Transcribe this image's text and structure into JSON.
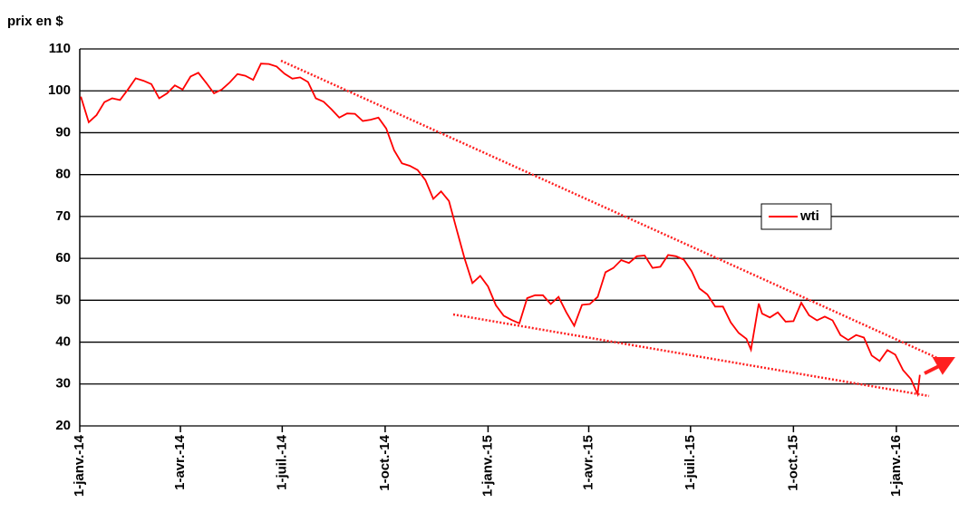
{
  "chart_data": {
    "type": "line",
    "ylabel": "prix en $",
    "x": [
      "2014-01-02",
      "2014-01-09",
      "2014-01-16",
      "2014-01-23",
      "2014-01-30",
      "2014-02-06",
      "2014-02-13",
      "2014-02-20",
      "2014-02-27",
      "2014-03-06",
      "2014-03-13",
      "2014-03-20",
      "2014-03-27",
      "2014-04-03",
      "2014-04-10",
      "2014-04-17",
      "2014-04-24",
      "2014-05-01",
      "2014-05-08",
      "2014-05-15",
      "2014-05-22",
      "2014-05-29",
      "2014-06-05",
      "2014-06-12",
      "2014-06-19",
      "2014-06-26",
      "2014-07-03",
      "2014-07-10",
      "2014-07-17",
      "2014-07-24",
      "2014-07-31",
      "2014-08-07",
      "2014-08-14",
      "2014-08-21",
      "2014-08-28",
      "2014-09-04",
      "2014-09-11",
      "2014-09-18",
      "2014-09-25",
      "2014-10-02",
      "2014-10-09",
      "2014-10-16",
      "2014-10-23",
      "2014-10-30",
      "2014-11-06",
      "2014-11-13",
      "2014-11-20",
      "2014-11-27",
      "2014-12-04",
      "2014-12-11",
      "2014-12-18",
      "2014-12-25",
      "2015-01-01",
      "2015-01-08",
      "2015-01-15",
      "2015-01-22",
      "2015-01-29",
      "2015-02-05",
      "2015-02-12",
      "2015-02-19",
      "2015-02-26",
      "2015-03-05",
      "2015-03-12",
      "2015-03-19",
      "2015-03-26",
      "2015-04-02",
      "2015-04-09",
      "2015-04-16",
      "2015-04-23",
      "2015-04-30",
      "2015-05-07",
      "2015-05-14",
      "2015-05-21",
      "2015-05-28",
      "2015-06-04",
      "2015-06-11",
      "2015-06-18",
      "2015-06-25",
      "2015-07-02",
      "2015-07-09",
      "2015-07-16",
      "2015-07-23",
      "2015-07-30",
      "2015-08-06",
      "2015-08-13",
      "2015-08-20",
      "2015-08-24",
      "2015-08-31",
      "2015-09-03",
      "2015-09-10",
      "2015-09-17",
      "2015-09-24",
      "2015-10-01",
      "2015-10-08",
      "2015-10-15",
      "2015-10-22",
      "2015-10-29",
      "2015-11-05",
      "2015-11-12",
      "2015-11-19",
      "2015-11-26",
      "2015-12-03",
      "2015-12-10",
      "2015-12-17",
      "2015-12-24",
      "2015-12-31",
      "2016-01-07",
      "2016-01-14",
      "2016-01-20",
      "2016-01-22"
    ],
    "series": [
      {
        "name": "wti",
        "color": "#ff0000",
        "values": [
          98.6,
          92.5,
          94.2,
          97.3,
          98.2,
          97.8,
          100.3,
          103.0,
          102.4,
          101.6,
          98.2,
          99.4,
          101.3,
          100.3,
          103.4,
          104.3,
          101.9,
          99.4,
          100.3,
          102.0,
          104.0,
          103.6,
          102.6,
          106.5,
          106.4,
          105.8,
          104.1,
          102.9,
          103.2,
          102.1,
          98.2,
          97.4,
          95.6,
          93.6,
          94.6,
          94.5,
          92.8,
          93.1,
          93.6,
          91.0,
          85.8,
          82.7,
          82.1,
          81.1,
          78.7,
          74.2,
          76.0,
          73.7,
          66.8,
          60.0,
          54.1,
          55.8,
          53.3,
          48.8,
          46.3,
          45.3,
          44.5,
          50.5,
          51.2,
          51.2,
          49.1,
          50.8,
          47.1,
          43.9,
          48.9,
          49.1,
          50.8,
          56.7,
          57.7,
          59.6,
          58.9,
          60.5,
          60.7,
          57.7,
          58.0,
          60.8,
          60.5,
          59.7,
          56.9,
          52.8,
          51.4,
          48.5,
          48.5,
          44.7,
          42.2,
          40.8,
          38.2,
          49.2,
          46.8,
          45.9,
          47.1,
          44.9,
          45.0,
          49.4,
          46.4,
          45.2,
          46.1,
          45.2,
          41.7,
          40.5,
          41.7,
          41.1,
          36.8,
          35.5,
          38.1,
          37.0,
          33.3,
          31.2,
          27.6,
          32.2
        ]
      }
    ],
    "xlim": [
      "2014-01-01",
      "2016-02-26"
    ],
    "xticks": [
      {
        "value": "2014-01-01",
        "label": "1-janv.-14"
      },
      {
        "value": "2014-04-01",
        "label": "1-avr.-14"
      },
      {
        "value": "2014-07-01",
        "label": "1-juil.-14"
      },
      {
        "value": "2014-10-01",
        "label": "1-oct.-14"
      },
      {
        "value": "2015-01-01",
        "label": "1-janv.-15"
      },
      {
        "value": "2015-04-01",
        "label": "1-avr.-15"
      },
      {
        "value": "2015-07-01",
        "label": "1-juil.-15"
      },
      {
        "value": "2015-10-01",
        "label": "1-oct.-15"
      },
      {
        "value": "2016-01-01",
        "label": "1-janv.-16"
      }
    ],
    "ylim": [
      20,
      110
    ],
    "yticks": [
      20,
      30,
      40,
      50,
      60,
      70,
      80,
      90,
      100,
      110
    ],
    "grid": true,
    "legend": "right"
  }
}
